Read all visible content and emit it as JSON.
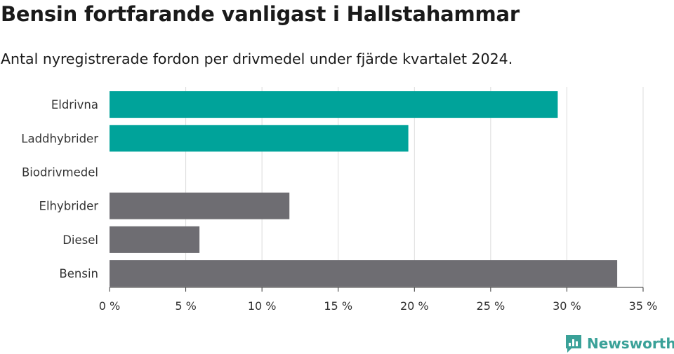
{
  "header": {
    "title": "Bensin fortfarande vanligast i Hallstahammar",
    "subtitle": "Antal nyregistrerade fordon per drivmedel under fjärde kvartalet 2024."
  },
  "brand": {
    "name": "Newsworthy",
    "icon": "newsworthy-logo-icon",
    "color": "#3aa198"
  },
  "chart_data": {
    "type": "bar",
    "orientation": "horizontal",
    "categories": [
      "Eldrivna",
      "Laddhybrider",
      "Biodrivmedel",
      "Elhybrider",
      "Diesel",
      "Bensin"
    ],
    "values": [
      29.4,
      19.6,
      0,
      11.8,
      5.9,
      33.3
    ],
    "bar_colors": [
      "#00a39a",
      "#00a39a",
      "#00a39a",
      "#6e6d72",
      "#6e6d72",
      "#6e6d72"
    ],
    "xlim": [
      0,
      35
    ],
    "x_ticks": [
      0,
      5,
      10,
      15,
      20,
      25,
      30,
      35
    ],
    "x_tick_labels": [
      "0 %",
      "5 %",
      "10 %",
      "15 %",
      "20 %",
      "25 %",
      "30 %",
      "35 %"
    ],
    "grid": "vertical",
    "xlabel": "",
    "ylabel": ""
  }
}
